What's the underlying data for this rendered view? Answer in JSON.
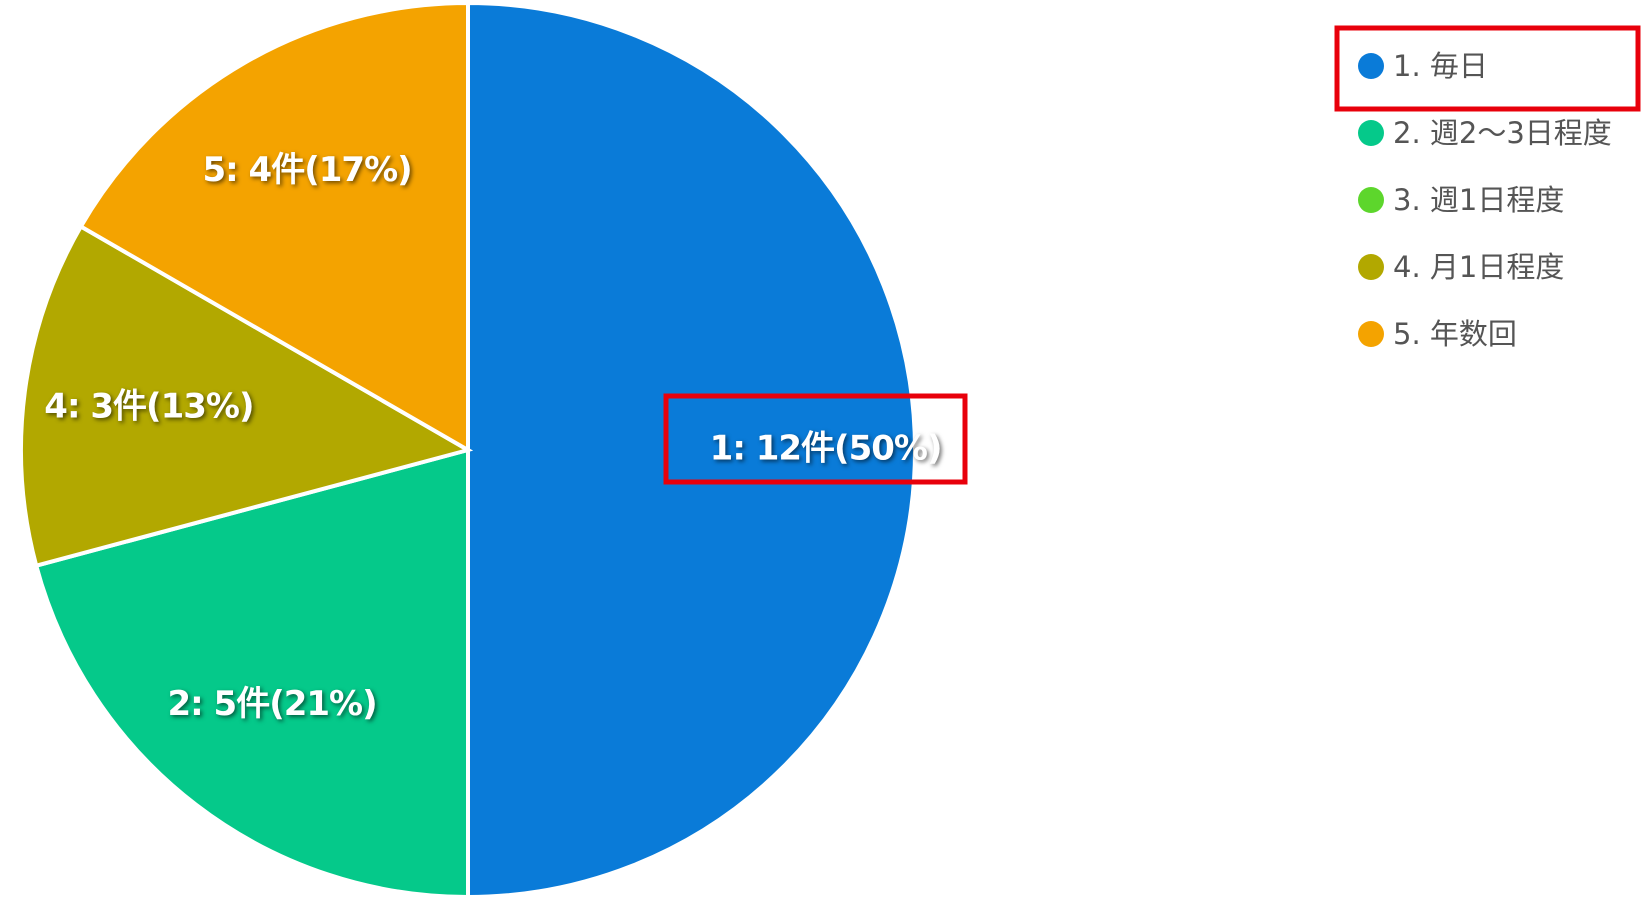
{
  "chart_data": {
    "type": "pie",
    "categories": [
      "1. 毎日",
      "2. 週2～3日程度",
      "3. 週1日程度",
      "4. 月1日程度",
      "5. 年数回"
    ],
    "values": [
      12,
      5,
      0,
      3,
      4
    ],
    "value_labels": [
      "1: 12件(50%)",
      "2: 5件(21%)",
      null,
      "4: 3件(13%)",
      "5: 4件(17%)"
    ],
    "colors": [
      "#0a7bd8",
      "#05c98a",
      "#5dd62c",
      "#b2a800",
      "#f4a300"
    ]
  }
}
